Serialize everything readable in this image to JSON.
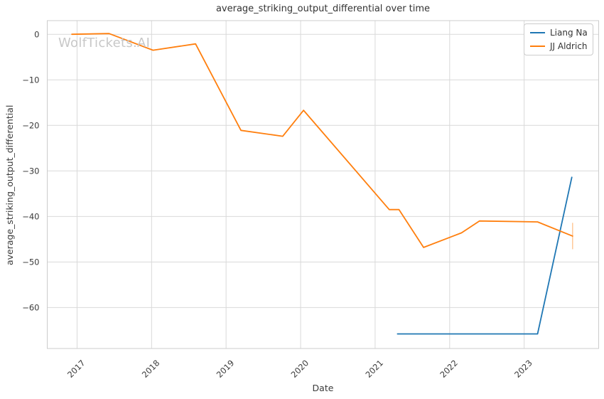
{
  "header": {
    "title": "average_striking_output_differential over time"
  },
  "watermark": {
    "text": "WolfTickets.AI",
    "color": "#c8c8c8"
  },
  "axes": {
    "xlabel": "Date",
    "ylabel": "average_striking_output_differential"
  },
  "style": {
    "background_color": "#ffffff",
    "grid_color": "#d9d9d9",
    "border_color": "#cccccc",
    "tick_label_color": "#3b3b3b"
  },
  "chart_data": {
    "type": "line",
    "title": "average_striking_output_differential over time",
    "xlabel": "Date",
    "ylabel": "average_striking_output_differential",
    "grid": true,
    "legend_position": "upper right",
    "xlim": [
      2016.6,
      2024.0
    ],
    "ylim": [
      -69,
      3
    ],
    "xticks": {
      "values": [
        2017,
        2018,
        2019,
        2020,
        2021,
        2022,
        2023
      ],
      "labels": [
        "2017",
        "2018",
        "2019",
        "2020",
        "2021",
        "2022",
        "2023"
      ],
      "rotation": 45
    },
    "yticks": {
      "values": [
        0,
        -10,
        -20,
        -30,
        -40,
        -50,
        -60
      ],
      "labels": [
        "0",
        "−10",
        "−20",
        "−30",
        "−40",
        "−50",
        "−60"
      ]
    },
    "series": [
      {
        "name": "Liang Na",
        "color": "#1f77b4",
        "points": [
          [
            2021.3,
            -65.8
          ],
          [
            2023.18,
            -65.8
          ],
          [
            2023.64,
            -31.4
          ]
        ]
      },
      {
        "name": "JJ Aldrich",
        "color": "#ff7f0e",
        "points": [
          [
            2016.93,
            0.0
          ],
          [
            2017.43,
            0.15
          ],
          [
            2018.02,
            -3.5
          ],
          [
            2018.59,
            -2.1
          ],
          [
            2019.2,
            -21.1
          ],
          [
            2019.76,
            -22.4
          ],
          [
            2020.04,
            -16.7
          ],
          [
            2021.19,
            -38.5
          ],
          [
            2021.32,
            -38.5
          ],
          [
            2021.65,
            -46.8
          ],
          [
            2022.16,
            -43.6
          ],
          [
            2022.4,
            -41.0
          ],
          [
            2023.18,
            -41.2
          ],
          [
            2023.65,
            -44.3
          ]
        ],
        "error_bar": {
          "x": 2023.65,
          "y": -44.3,
          "yerr": 2.9
        }
      }
    ]
  }
}
